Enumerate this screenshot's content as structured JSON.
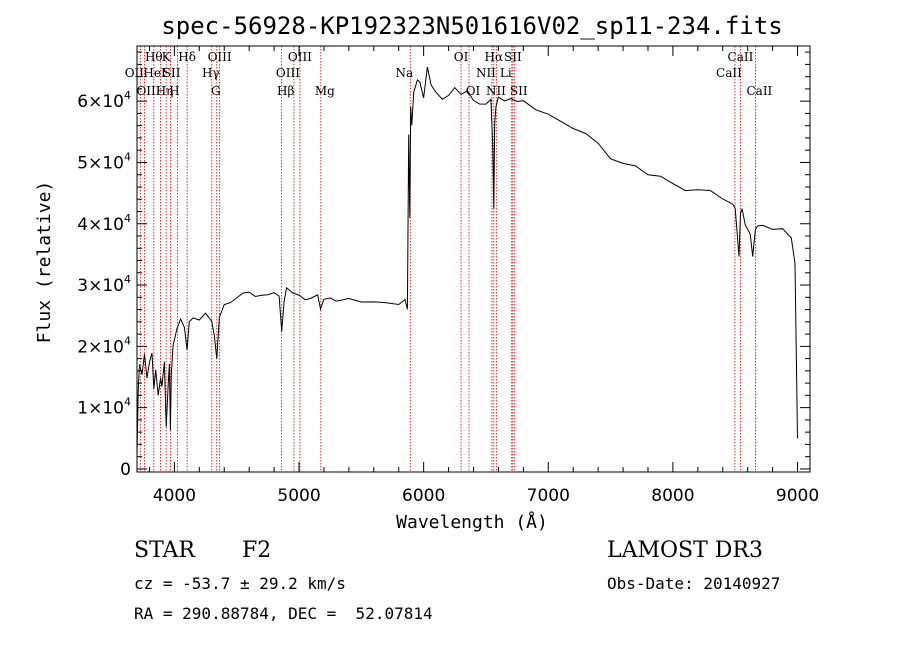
{
  "chart_data": {
    "type": "line",
    "title": "spec-56928-KP192323N501616V02_sp11-234.fits",
    "xlabel": "Wavelength (Å)",
    "ylabel": "Flux (relative)",
    "xlim": [
      3700,
      9100
    ],
    "ylim": [
      -500,
      69000
    ],
    "grid": false,
    "legend": "none",
    "xticks": [
      {
        "value": 4000,
        "label": "4000"
      },
      {
        "value": 5000,
        "label": "5000"
      },
      {
        "value": 6000,
        "label": "6000"
      },
      {
        "value": 7000,
        "label": "7000"
      },
      {
        "value": 8000,
        "label": "8000"
      },
      {
        "value": 9000,
        "label": "9000"
      }
    ],
    "yticks": [
      {
        "value": 0,
        "mant": "0",
        "exp": ""
      },
      {
        "value": 10000,
        "mant": "1×10",
        "exp": "4"
      },
      {
        "value": 20000,
        "mant": "2×10",
        "exp": "4"
      },
      {
        "value": 30000,
        "mant": "3×10",
        "exp": "4"
      },
      {
        "value": 40000,
        "mant": "4×10",
        "exp": "4"
      },
      {
        "value": 50000,
        "mant": "5×10",
        "exp": "4"
      },
      {
        "value": 60000,
        "mant": "6×10",
        "exp": "4"
      }
    ],
    "series": [
      {
        "name": "flux",
        "x": [
          3700,
          3710,
          3720,
          3740,
          3760,
          3780,
          3800,
          3820,
          3835,
          3850,
          3870,
          3889,
          3900,
          3920,
          3934,
          3950,
          3960,
          3968,
          3975,
          3990,
          4000,
          4020,
          4050,
          4080,
          4102,
          4120,
          4150,
          4200,
          4250,
          4300,
          4320,
          4340,
          4360,
          4400,
          4450,
          4500,
          4550,
          4600,
          4650,
          4700,
          4750,
          4800,
          4840,
          4861,
          4880,
          4900,
          4950,
          5000,
          5050,
          5100,
          5150,
          5172,
          5200,
          5250,
          5300,
          5400,
          5500,
          5600,
          5700,
          5800,
          5850,
          5870,
          5880,
          5889,
          5896,
          5905,
          5920,
          5950,
          5970,
          6000,
          6030,
          6060,
          6100,
          6150,
          6200,
          6250,
          6300,
          6350,
          6400,
          6450,
          6500,
          6540,
          6555,
          6563,
          6570,
          6580,
          6600,
          6650,
          6700,
          6750,
          6800,
          6900,
          7000,
          7100,
          7200,
          7300,
          7400,
          7500,
          7600,
          7700,
          7800,
          7900,
          8000,
          8100,
          8200,
          8300,
          8400,
          8480,
          8500,
          8530,
          8542,
          8555,
          8580,
          8620,
          8640,
          8662,
          8680,
          8720,
          8800,
          8880,
          8950,
          8980,
          9000
        ],
        "y": [
          2000,
          12000,
          17000,
          15000,
          18500,
          14500,
          17000,
          18800,
          13500,
          16500,
          12000,
          15000,
          14000,
          17500,
          7000,
          13500,
          16500,
          6000,
          15000,
          20000,
          20500,
          22500,
          24000,
          23500,
          20000,
          24500,
          25000,
          25000,
          26000,
          24500,
          21000,
          17500,
          24500,
          26500,
          27000,
          27500,
          28000,
          28200,
          28500,
          28500,
          28700,
          28800,
          28600,
          23000,
          27500,
          29000,
          28500,
          28000,
          27500,
          27800,
          28200,
          26000,
          27800,
          28200,
          27800,
          27900,
          27600,
          27800,
          27600,
          27400,
          27500,
          26000,
          54000,
          41000,
          59000,
          56000,
          61000,
          64000,
          63500,
          61000,
          66000,
          63000,
          62000,
          61000,
          61500,
          61800,
          61000,
          61200,
          60000,
          59500,
          59000,
          60000,
          53000,
          43000,
          57000,
          59500,
          61000,
          60500,
          60800,
          60000,
          59500,
          58500,
          57500,
          56200,
          55000,
          54200,
          52500,
          51200,
          50500,
          49800,
          48500,
          47800,
          47200,
          46000,
          45200,
          44800,
          43800,
          42800,
          42000,
          34000,
          41500,
          42000,
          40500,
          39000,
          35000,
          39500,
          40000,
          39800,
          39500,
          38500,
          37500,
          33000,
          5000
        ]
      }
    ],
    "lines": [
      {
        "w": 3727,
        "labels": [
          {
            "row": 1,
            "text": "OII"
          }
        ]
      },
      {
        "w": 3760,
        "labels": [
          {
            "row": 2,
            "text": "OIII"
          }
        ]
      },
      {
        "w": 3835,
        "labels": [
          {
            "row": 0,
            "text": "Hθ"
          }
        ]
      },
      {
        "w": 3889,
        "labels": [
          {
            "row": 1,
            "text": "HeI"
          },
          {
            "row": 2,
            "text": "Hη"
          }
        ]
      },
      {
        "w": 3934,
        "labels": [
          {
            "row": 0,
            "text": "K"
          }
        ]
      },
      {
        "w": 3968,
        "labels": [
          {
            "row": 2,
            "text": "H"
          }
        ]
      },
      {
        "w": 4026,
        "labels": [
          {
            "row": 1,
            "text": "SII"
          }
        ]
      },
      {
        "w": 4102,
        "labels": [
          {
            "row": 0,
            "text": "Hδ"
          }
        ]
      },
      {
        "w": 4300,
        "labels": [
          {
            "row": 2,
            "text": "G"
          }
        ]
      },
      {
        "w": 4340,
        "labels": [
          {
            "row": 1,
            "text": "Hγ"
          }
        ]
      },
      {
        "w": 4363,
        "labels": [
          {
            "row": 0,
            "text": "OIII"
          }
        ]
      },
      {
        "w": 4861,
        "labels": [
          {
            "row": 2,
            "text": "Hβ"
          }
        ]
      },
      {
        "w": 4959,
        "labels": [
          {
            "row": 1,
            "text": "OIII"
          }
        ]
      },
      {
        "w": 5007,
        "labels": [
          {
            "row": 0,
            "text": "OIII"
          }
        ]
      },
      {
        "w": 5175,
        "labels": [
          {
            "row": 2,
            "text": "Mg"
          }
        ]
      },
      {
        "w": 5893,
        "labels": [
          {
            "row": 1,
            "text": "Na"
          }
        ]
      },
      {
        "w": 6300,
        "labels": [
          {
            "row": 0,
            "text": "OI"
          }
        ]
      },
      {
        "w": 6364,
        "labels": [
          {
            "row": 2,
            "text": "OI"
          }
        ]
      },
      {
        "w": 6548,
        "labels": [
          {
            "row": 1,
            "text": "NII"
          },
          {
            "row": 2,
            "text": "NII"
          }
        ]
      },
      {
        "w": 6563,
        "labels": [
          {
            "row": 0,
            "text": "Hα"
          }
        ]
      },
      {
        "w": 6583,
        "labels": []
      },
      {
        "w": 6707,
        "labels": [
          {
            "row": 1,
            "text": "Li"
          }
        ]
      },
      {
        "w": 6716,
        "labels": [
          {
            "row": 0,
            "text": "SII"
          }
        ]
      },
      {
        "w": 6731,
        "labels": [
          {
            "row": 2,
            "text": "SII"
          }
        ]
      },
      {
        "w": 8498,
        "labels": [
          {
            "row": 1,
            "text": "CaII"
          }
        ]
      },
      {
        "w": 8542,
        "labels": [
          {
            "row": 0,
            "text": "CaII"
          }
        ]
      },
      {
        "w": 8662,
        "labels": [
          {
            "row": 2,
            "text": "CaII"
          }
        ]
      }
    ],
    "line_color": "#cc0000",
    "spectrum_color": "#000000"
  },
  "info": {
    "object_class": "STAR",
    "subclass": "F2",
    "survey": "LAMOST DR3",
    "redshift": "cz = -53.7 ± 29.2 km/s",
    "obs_date": "Obs-Date: 20140927",
    "coords": "RA = 290.88784, DEC =  52.07814"
  }
}
